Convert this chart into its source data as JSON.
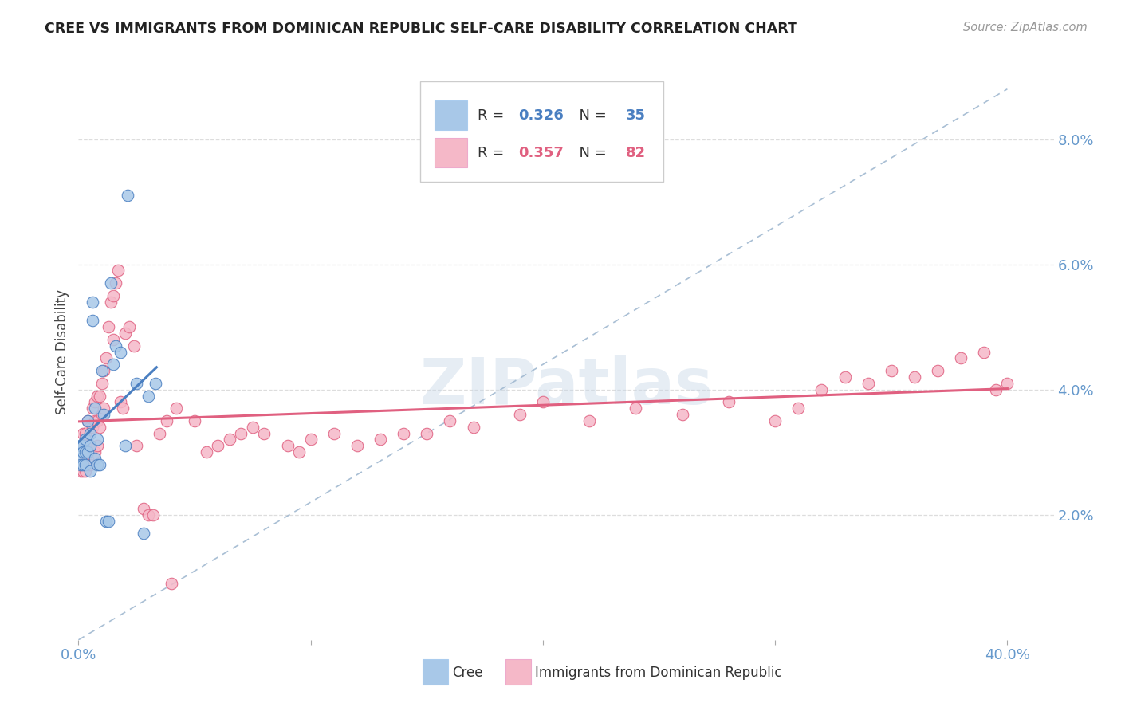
{
  "title": "CREE VS IMMIGRANTS FROM DOMINICAN REPUBLIC SELF-CARE DISABILITY CORRELATION CHART",
  "source": "Source: ZipAtlas.com",
  "ylabel": "Self-Care Disability",
  "xlim": [
    0.0,
    0.42
  ],
  "ylim": [
    0.0,
    0.092
  ],
  "xtick_positions": [
    0.0,
    0.1,
    0.2,
    0.3,
    0.4
  ],
  "xticklabels": [
    "0.0%",
    "",
    "",
    "",
    "40.0%"
  ],
  "ytick_positions": [
    0.02,
    0.04,
    0.06,
    0.08
  ],
  "ytick_labels": [
    "2.0%",
    "4.0%",
    "6.0%",
    "8.0%"
  ],
  "cree_color": "#a8c8e8",
  "imm_color": "#f5b8c8",
  "cree_line_color": "#4a7fc1",
  "imm_line_color": "#e06080",
  "dash_line_color": "#a0b8d0",
  "legend_r_cree": "0.326",
  "legend_n_cree": "35",
  "legend_r_imm": "0.357",
  "legend_n_imm": "82",
  "cree_x": [
    0.001,
    0.001,
    0.001,
    0.002,
    0.002,
    0.002,
    0.003,
    0.003,
    0.003,
    0.004,
    0.004,
    0.005,
    0.005,
    0.005,
    0.006,
    0.006,
    0.007,
    0.007,
    0.008,
    0.008,
    0.009,
    0.01,
    0.011,
    0.012,
    0.013,
    0.014,
    0.015,
    0.016,
    0.018,
    0.02,
    0.021,
    0.025,
    0.028,
    0.03,
    0.033
  ],
  "cree_y": [
    0.031,
    0.029,
    0.028,
    0.031,
    0.03,
    0.028,
    0.032,
    0.03,
    0.028,
    0.035,
    0.03,
    0.033,
    0.031,
    0.027,
    0.054,
    0.051,
    0.037,
    0.029,
    0.032,
    0.028,
    0.028,
    0.043,
    0.036,
    0.019,
    0.019,
    0.057,
    0.044,
    0.047,
    0.046,
    0.031,
    0.071,
    0.041,
    0.017,
    0.039,
    0.041
  ],
  "imm_x": [
    0.001,
    0.001,
    0.002,
    0.002,
    0.002,
    0.003,
    0.003,
    0.003,
    0.004,
    0.004,
    0.005,
    0.005,
    0.005,
    0.006,
    0.006,
    0.007,
    0.007,
    0.007,
    0.008,
    0.008,
    0.008,
    0.009,
    0.009,
    0.01,
    0.01,
    0.011,
    0.011,
    0.012,
    0.013,
    0.014,
    0.015,
    0.015,
    0.016,
    0.017,
    0.018,
    0.019,
    0.02,
    0.022,
    0.024,
    0.025,
    0.028,
    0.03,
    0.032,
    0.035,
    0.038,
    0.04,
    0.042,
    0.05,
    0.055,
    0.06,
    0.065,
    0.07,
    0.075,
    0.08,
    0.09,
    0.095,
    0.1,
    0.11,
    0.12,
    0.13,
    0.14,
    0.15,
    0.16,
    0.17,
    0.19,
    0.2,
    0.22,
    0.24,
    0.26,
    0.28,
    0.3,
    0.31,
    0.32,
    0.33,
    0.34,
    0.35,
    0.36,
    0.37,
    0.38,
    0.39,
    0.395,
    0.4
  ],
  "imm_y": [
    0.028,
    0.027,
    0.033,
    0.031,
    0.027,
    0.033,
    0.031,
    0.027,
    0.035,
    0.029,
    0.034,
    0.031,
    0.028,
    0.037,
    0.034,
    0.038,
    0.035,
    0.03,
    0.039,
    0.035,
    0.031,
    0.039,
    0.034,
    0.041,
    0.036,
    0.043,
    0.037,
    0.045,
    0.05,
    0.054,
    0.055,
    0.048,
    0.057,
    0.059,
    0.038,
    0.037,
    0.049,
    0.05,
    0.047,
    0.031,
    0.021,
    0.02,
    0.02,
    0.033,
    0.035,
    0.009,
    0.037,
    0.035,
    0.03,
    0.031,
    0.032,
    0.033,
    0.034,
    0.033,
    0.031,
    0.03,
    0.032,
    0.033,
    0.031,
    0.032,
    0.033,
    0.033,
    0.035,
    0.034,
    0.036,
    0.038,
    0.035,
    0.037,
    0.036,
    0.038,
    0.035,
    0.037,
    0.04,
    0.042,
    0.041,
    0.043,
    0.042,
    0.043,
    0.045,
    0.046,
    0.04,
    0.041
  ],
  "watermark": "ZIPatlas",
  "background_color": "#ffffff",
  "grid_color": "#dddddd",
  "tick_color": "#6699cc"
}
